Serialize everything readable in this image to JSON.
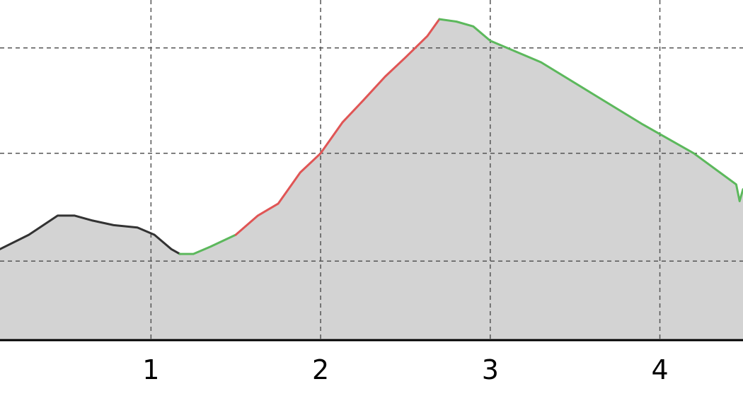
{
  "chart_data": {
    "type": "area",
    "title": "",
    "xlabel": "",
    "ylabel": "",
    "xlim": [
      0.11,
      4.49
    ],
    "ylim": [
      0,
      1.42
    ],
    "x_ticks": [
      {
        "value": 1,
        "label": "1"
      },
      {
        "value": 2,
        "label": "2"
      },
      {
        "value": 3,
        "label": "3"
      },
      {
        "value": 4,
        "label": "4"
      }
    ],
    "y_gridlines": [
      0.33,
      0.78,
      1.22
    ],
    "grid": true,
    "fill_color": "#d3d3d3",
    "segment_colors": {
      "dark": "#333333",
      "green": "#5cb85c",
      "red": "#e05555"
    },
    "segments": [
      {
        "name": "",
        "color_key": "dark",
        "points": [
          [
            0.11,
            0.38
          ],
          [
            0.28,
            0.44
          ],
          [
            0.45,
            0.52
          ],
          [
            0.55,
            0.52
          ],
          [
            0.65,
            0.5
          ],
          [
            0.78,
            0.48
          ],
          [
            0.92,
            0.47
          ],
          [
            1.02,
            0.44
          ],
          [
            1.12,
            0.38
          ],
          [
            1.17,
            0.36
          ]
        ]
      },
      {
        "name": "",
        "color_key": "green",
        "points": [
          [
            1.17,
            0.36
          ],
          [
            1.25,
            0.36
          ],
          [
            1.35,
            0.39
          ],
          [
            1.5,
            0.44
          ]
        ]
      },
      {
        "name": "",
        "color_key": "red",
        "points": [
          [
            1.5,
            0.44
          ],
          [
            1.63,
            0.52
          ],
          [
            1.75,
            0.57
          ],
          [
            1.88,
            0.7
          ],
          [
            2.0,
            0.78
          ],
          [
            2.13,
            0.91
          ],
          [
            2.25,
            1.0
          ],
          [
            2.38,
            1.1
          ],
          [
            2.5,
            1.18
          ],
          [
            2.63,
            1.27
          ],
          [
            2.7,
            1.34
          ]
        ]
      },
      {
        "name": "",
        "color_key": "green",
        "points": [
          [
            2.7,
            1.34
          ],
          [
            2.8,
            1.33
          ],
          [
            2.9,
            1.31
          ],
          [
            3.0,
            1.25
          ],
          [
            3.3,
            1.16
          ],
          [
            3.6,
            1.03
          ],
          [
            3.9,
            0.9
          ],
          [
            4.2,
            0.78
          ],
          [
            4.45,
            0.65
          ],
          [
            4.47,
            0.58
          ],
          [
            4.49,
            0.63
          ]
        ]
      }
    ]
  }
}
